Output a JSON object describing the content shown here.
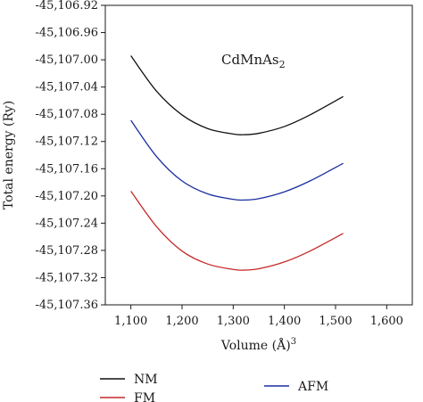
{
  "chart_data": {
    "type": "line",
    "xlabel": "Volume (Å)",
    "xlabel_sup": "3",
    "ylabel": "Total energy (Ry)",
    "annotation": {
      "text": "CdMnAs",
      "sub": "2"
    },
    "xlim": [
      1050,
      1650
    ],
    "ylim": [
      -45107.36,
      -45106.92
    ],
    "x_ticks": [
      {
        "value": 1100,
        "label": "1,100"
      },
      {
        "value": 1200,
        "label": "1,200"
      },
      {
        "value": 1300,
        "label": "1,300"
      },
      {
        "value": 1400,
        "label": "1,400"
      },
      {
        "value": 1500,
        "label": "1,500"
      },
      {
        "value": 1600,
        "label": "1,600"
      }
    ],
    "y_ticks": [
      {
        "value": -45106.92,
        "label": "-45,106.92"
      },
      {
        "value": -45106.96,
        "label": "-45,106.96"
      },
      {
        "value": -45107.0,
        "label": "-45,107.00"
      },
      {
        "value": -45107.04,
        "label": "-45,107.04"
      },
      {
        "value": -45107.08,
        "label": "-45,107.08"
      },
      {
        "value": -45107.12,
        "label": "-45,107.12"
      },
      {
        "value": -45107.16,
        "label": "-45,107.16"
      },
      {
        "value": -45107.2,
        "label": "-45,107.20"
      },
      {
        "value": -45107.24,
        "label": "-45,107.24"
      },
      {
        "value": -45107.28,
        "label": "-45,107.28"
      },
      {
        "value": -45107.32,
        "label": "-45,107.32"
      },
      {
        "value": -45107.36,
        "label": "-45,107.36"
      }
    ],
    "legend_position": "bottom",
    "series": [
      {
        "name": "NM",
        "color": "#111111",
        "x": [
          1100,
          1150,
          1200,
          1250,
          1300,
          1320,
          1350,
          1400,
          1450,
          1515
        ],
        "y": [
          -45106.994,
          -45107.046,
          -45107.081,
          -45107.101,
          -45107.109,
          -45107.11,
          -45107.108,
          -45107.098,
          -45107.081,
          -45107.054
        ]
      },
      {
        "name": "FM",
        "color": "#c62828",
        "x": [
          1100,
          1150,
          1200,
          1250,
          1300,
          1320,
          1350,
          1400,
          1450,
          1515
        ],
        "y": [
          -45107.193,
          -45107.245,
          -45107.281,
          -45107.3,
          -45107.308,
          -45107.309,
          -45107.307,
          -45107.297,
          -45107.281,
          -45107.255
        ]
      },
      {
        "name": "AFM",
        "color": "#1a2f9e",
        "x": [
          1100,
          1150,
          1200,
          1250,
          1300,
          1320,
          1350,
          1400,
          1450,
          1515
        ],
        "y": [
          -45107.089,
          -45107.142,
          -45107.178,
          -45107.197,
          -45107.205,
          -45107.206,
          -45107.204,
          -45107.194,
          -45107.178,
          -45107.152
        ]
      }
    ]
  }
}
